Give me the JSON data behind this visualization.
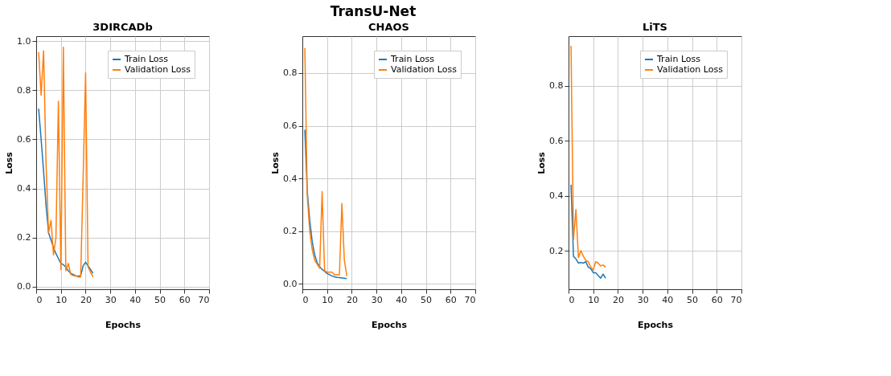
{
  "chart_data": [
    {
      "type": "line",
      "title": "3DIRCADb",
      "annotations": [
        "TransU-Net"
      ],
      "xlabel": "Epochs",
      "ylabel": "Loss",
      "xlim": [
        0,
        70
      ],
      "xticks": [
        0,
        10,
        20,
        30,
        40,
        50,
        60,
        70
      ],
      "ylim": [
        -0.01,
        1.02
      ],
      "yticks": [
        {
          "value": 0,
          "label": "0.0"
        },
        0.2,
        0.4,
        0.6,
        0.8,
        {
          "value": 1,
          "label": "1.0"
        }
      ],
      "grid": true,
      "legend": "top right",
      "x": [
        1,
        2,
        3,
        4,
        5,
        6,
        7,
        8,
        9,
        10,
        11,
        12,
        13,
        14,
        15,
        16,
        17,
        18,
        19,
        20,
        21,
        22,
        23
      ],
      "series": [
        {
          "name": "Train Loss",
          "color": "#1f77b4",
          "values": [
            0.725,
            0.6,
            0.47,
            0.33,
            0.22,
            0.19,
            0.16,
            0.135,
            0.115,
            0.095,
            0.09,
            0.08,
            0.065,
            0.055,
            0.05,
            0.045,
            0.043,
            0.045,
            0.085,
            0.1,
            0.085,
            0.07,
            0.055
          ]
        },
        {
          "name": "Validation Loss",
          "color": "#ff7f0e",
          "values": [
            0.955,
            0.78,
            0.96,
            0.5,
            0.22,
            0.27,
            0.13,
            0.2,
            0.755,
            0.07,
            0.975,
            0.065,
            0.095,
            0.05,
            0.045,
            0.045,
            0.04,
            0.04,
            0.44,
            0.87,
            0.08,
            0.06,
            0.04
          ]
        }
      ]
    },
    {
      "type": "line",
      "title": "CHAOS",
      "xlabel": "Epochs",
      "ylabel": "Loss",
      "xlim": [
        0,
        70
      ],
      "xticks": [
        0,
        10,
        20,
        30,
        40,
        50,
        60,
        70
      ],
      "ylim": [
        -0.02,
        0.94
      ],
      "yticks": [
        {
          "value": 0,
          "label": "0.0"
        },
        0.2,
        0.4,
        0.6,
        0.8
      ],
      "grid": true,
      "legend": "top right",
      "x": [
        1,
        2,
        3,
        4,
        5,
        6,
        7,
        8,
        9,
        10,
        11,
        12,
        13,
        14,
        15,
        16,
        17,
        18
      ],
      "series": [
        {
          "name": "Train Loss",
          "color": "#1f77b4",
          "values": [
            0.585,
            0.35,
            0.24,
            0.16,
            0.11,
            0.08,
            0.065,
            0.055,
            0.048,
            0.04,
            0.035,
            0.03,
            0.027,
            0.025,
            0.024,
            0.023,
            0.022,
            0.02
          ]
        },
        {
          "name": "Validation Loss",
          "color": "#ff7f0e",
          "values": [
            0.895,
            0.33,
            0.2,
            0.13,
            0.09,
            0.075,
            0.06,
            0.35,
            0.05,
            0.045,
            0.045,
            0.045,
            0.035,
            0.035,
            0.035,
            0.305,
            0.09,
            0.03
          ]
        }
      ]
    },
    {
      "type": "line",
      "title": "LiTS",
      "xlabel": "Epochs",
      "ylabel": "Loss",
      "xlim": [
        0,
        70
      ],
      "xticks": [
        0,
        10,
        20,
        30,
        40,
        50,
        60,
        70
      ],
      "ylim": [
        0.06,
        0.98
      ],
      "yticks": [
        0.2,
        0.4,
        0.6,
        0.8
      ],
      "grid": true,
      "legend": "top right",
      "x": [
        1,
        2,
        3,
        4,
        5,
        6,
        7,
        8,
        9,
        10,
        11,
        12,
        13,
        14,
        15
      ],
      "series": [
        {
          "name": "Train Loss",
          "color": "#1f77b4",
          "values": [
            0.44,
            0.18,
            0.17,
            0.155,
            0.157,
            0.155,
            0.16,
            0.14,
            0.135,
            0.12,
            0.12,
            0.11,
            0.1,
            0.115,
            0.1
          ]
        },
        {
          "name": "Validation Loss",
          "color": "#ff7f0e",
          "values": [
            0.945,
            0.24,
            0.35,
            0.175,
            0.2,
            0.18,
            0.165,
            0.16,
            0.14,
            0.13,
            0.16,
            0.155,
            0.145,
            0.148,
            0.14
          ]
        }
      ]
    }
  ]
}
